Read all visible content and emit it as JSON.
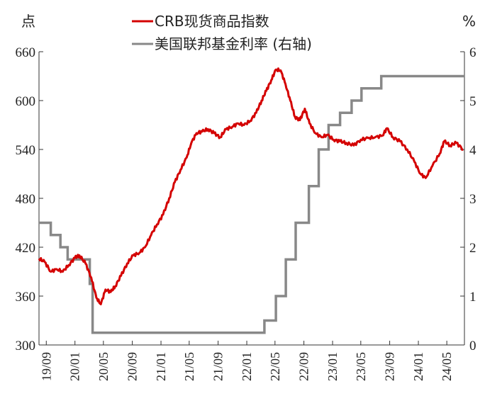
{
  "chart_data": {
    "type": "line",
    "left_axis": {
      "unit": "点",
      "min": 300,
      "max": 660,
      "ticks": [
        300,
        360,
        420,
        480,
        540,
        600,
        660
      ]
    },
    "right_axis": {
      "unit": "%",
      "min": 0,
      "max": 6,
      "ticks": [
        0,
        1,
        2,
        3,
        4,
        5,
        6
      ]
    },
    "x_ticks": [
      "19/09",
      "20/01",
      "20/05",
      "20/09",
      "21/01",
      "21/05",
      "21/09",
      "22/01",
      "22/05",
      "22/09",
      "23/01",
      "23/05",
      "23/09",
      "24/01",
      "24/05"
    ],
    "x_range": [
      "2019-08-01",
      "2024-07-15"
    ],
    "legend_position": "top-center",
    "grid": false,
    "series": [
      {
        "name": "CRB现货商品指数",
        "axis": "left",
        "color": "#d40000",
        "x": [
          "2019-08-01",
          "2019-08-25",
          "2019-09-20",
          "2019-10-15",
          "2019-11-10",
          "2019-12-05",
          "2020-01-01",
          "2020-01-20",
          "2020-02-15",
          "2020-03-10",
          "2020-04-01",
          "2020-04-20",
          "2020-05-10",
          "2020-06-01",
          "2020-06-20",
          "2020-07-15",
          "2020-08-10",
          "2020-09-05",
          "2020-10-01",
          "2020-10-25",
          "2020-11-20",
          "2020-12-15",
          "2021-01-10",
          "2021-02-05",
          "2021-03-01",
          "2021-03-25",
          "2021-04-20",
          "2021-05-10",
          "2021-06-01",
          "2021-06-25",
          "2021-07-20",
          "2021-08-15",
          "2021-09-10",
          "2021-10-05",
          "2021-11-01",
          "2021-11-25",
          "2021-12-20",
          "2022-01-15",
          "2022-02-10",
          "2022-03-05",
          "2022-03-25",
          "2022-04-15",
          "2022-05-05",
          "2022-05-25",
          "2022-06-15",
          "2022-07-05",
          "2022-07-25",
          "2022-08-15",
          "2022-09-05",
          "2022-09-25",
          "2022-10-20",
          "2022-11-15",
          "2022-12-10",
          "2023-01-05",
          "2023-02-01",
          "2023-03-01",
          "2023-04-01",
          "2023-05-01",
          "2023-06-01",
          "2023-07-01",
          "2023-08-01",
          "2023-08-20",
          "2023-09-15",
          "2023-10-15",
          "2023-11-15",
          "2023-12-15",
          "2024-01-10",
          "2024-02-01",
          "2024-03-01",
          "2024-04-01",
          "2024-04-20",
          "2024-05-15",
          "2024-06-10",
          "2024-07-10"
        ],
        "values": [
          406,
          402,
          390,
          393,
          390,
          398,
          407,
          410,
          400,
          383,
          358,
          350,
          368,
          365,
          372,
          385,
          400,
          410,
          413,
          420,
          435,
          448,
          460,
          480,
          500,
          515,
          530,
          548,
          560,
          562,
          565,
          560,
          555,
          565,
          568,
          572,
          570,
          575,
          585,
          600,
          612,
          625,
          638,
          637,
          620,
          600,
          580,
          576,
          590,
          572,
          560,
          555,
          558,
          552,
          550,
          548,
          545,
          552,
          554,
          555,
          557,
          566,
          555,
          550,
          540,
          525,
          510,
          505,
          520,
          535,
          550,
          545,
          548,
          540
        ]
      },
      {
        "name": "美国联邦基金利率 (右轴)",
        "axis": "right",
        "color": "#888888",
        "step": true,
        "x": [
          "2019-08-01",
          "2019-09-20",
          "2019-10-31",
          "2019-12-01",
          "2020-03-04",
          "2020-03-16",
          "2022-03-17",
          "2022-05-05",
          "2022-06-16",
          "2022-07-28",
          "2022-09-22",
          "2022-11-03",
          "2022-12-15",
          "2023-02-02",
          "2023-03-23",
          "2023-05-04",
          "2023-07-27",
          "2024-07-15"
        ],
        "values": [
          2.5,
          2.25,
          2.0,
          1.75,
          1.25,
          0.25,
          0.5,
          1.0,
          1.75,
          2.5,
          3.25,
          4.0,
          4.5,
          4.75,
          5.0,
          5.25,
          5.5,
          5.5
        ]
      }
    ]
  }
}
